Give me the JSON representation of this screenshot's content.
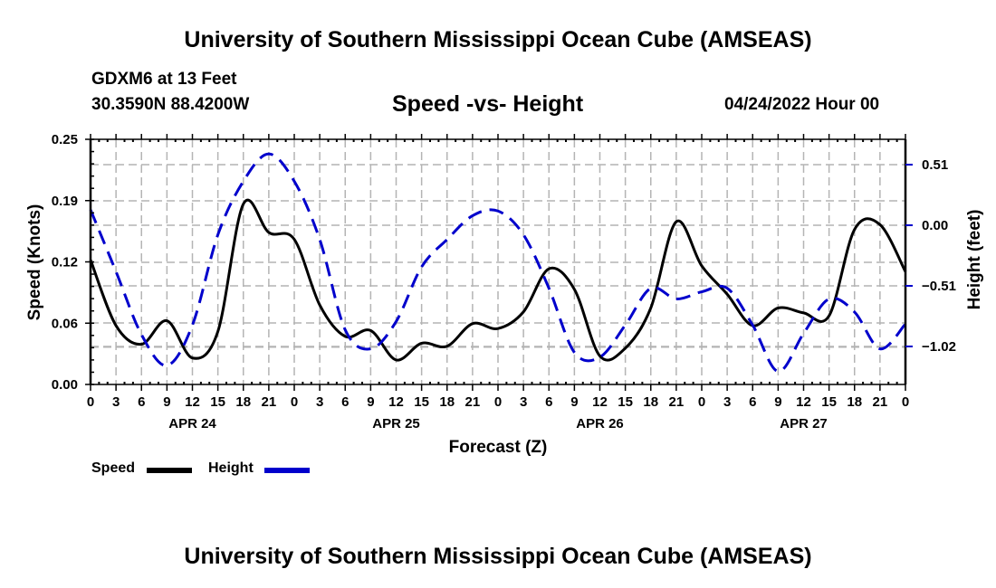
{
  "header": {
    "main_title": "University of Southern Mississippi Ocean Cube (AMSEAS)",
    "station": "GDXM6 at 13 Feet",
    "coords": "30.3590N  88.4200W",
    "plot_title": "Speed -vs- Height",
    "datetime": "04/24/2022 Hour 00"
  },
  "footer": {
    "title": "University of Southern Mississippi Ocean Cube (AMSEAS)"
  },
  "legend": {
    "speed_label": "Speed",
    "height_label": "Height"
  },
  "colors": {
    "speed": "#000000",
    "height": "#0000cc",
    "grid": "#b4b4b4"
  },
  "chart_data": {
    "type": "line",
    "title": "Speed -vs- Height",
    "xlabel": "Forecast (Z)",
    "ylabel": "Speed (Knots)",
    "y2label": "Height (feet)",
    "x_unit": "forecast hours from 04/24/2022 00Z",
    "xlim": [
      0,
      96
    ],
    "ylim": [
      0,
      0.25
    ],
    "y2lim": [
      -1.6,
      0.64
    ],
    "x_tick_labels": [
      "0",
      "3",
      "6",
      "9",
      "12",
      "15",
      "18",
      "21",
      "0",
      "3",
      "6",
      "9",
      "12",
      "15",
      "18",
      "21",
      "0",
      "3",
      "6",
      "9",
      "12",
      "15",
      "18",
      "21",
      "0",
      "3",
      "6",
      "9",
      "12",
      "15",
      "18",
      "21",
      "0"
    ],
    "date_labels": [
      {
        "label": "APR 24",
        "hour": 12
      },
      {
        "label": "APR 25",
        "hour": 36
      },
      {
        "label": "APR 26",
        "hour": 60
      },
      {
        "label": "APR 27",
        "hour": 84
      }
    ],
    "y_ticks": [
      "0.00",
      "0.06",
      "0.12",
      "0.19",
      "0.25"
    ],
    "y_tick_values": [
      0,
      0.0625,
      0.125,
      0.1875,
      0.25
    ],
    "y2_ticks": [
      "0.51",
      "0.00",
      "−0.51",
      "−1.02"
    ],
    "y2_tick_values": [
      0.51,
      0,
      -0.51,
      -1.02
    ],
    "grid": true,
    "legend_position": "bottom-left",
    "x": [
      0,
      3,
      6,
      9,
      12,
      15,
      18,
      21,
      24,
      27,
      30,
      33,
      36,
      39,
      42,
      45,
      48,
      51,
      54,
      57,
      60,
      63,
      66,
      69,
      72,
      75,
      78,
      81,
      84,
      87,
      90,
      93,
      96
    ],
    "series": [
      {
        "name": "Speed",
        "axis": "left",
        "style": "solid",
        "values": [
          0.127,
          0.06,
          0.041,
          0.065,
          0.027,
          0.054,
          0.184,
          0.155,
          0.148,
          0.081,
          0.049,
          0.055,
          0.025,
          0.042,
          0.039,
          0.062,
          0.057,
          0.074,
          0.118,
          0.097,
          0.029,
          0.037,
          0.078,
          0.166,
          0.121,
          0.092,
          0.06,
          0.078,
          0.073,
          0.07,
          0.158,
          0.163,
          0.115
        ]
      },
      {
        "name": "Height",
        "axis": "right",
        "style": "dashed",
        "values": [
          0.13,
          -0.39,
          -0.92,
          -1.18,
          -0.84,
          -0.08,
          0.37,
          0.6,
          0.37,
          -0.12,
          -0.88,
          -1.04,
          -0.81,
          -0.35,
          -0.12,
          0.08,
          0.12,
          -0.08,
          -0.53,
          -1.07,
          -1.11,
          -0.84,
          -0.53,
          -0.62,
          -0.56,
          -0.53,
          -0.84,
          -1.23,
          -0.91,
          -0.62,
          -0.73,
          -1.04,
          -0.83
        ]
      }
    ]
  }
}
